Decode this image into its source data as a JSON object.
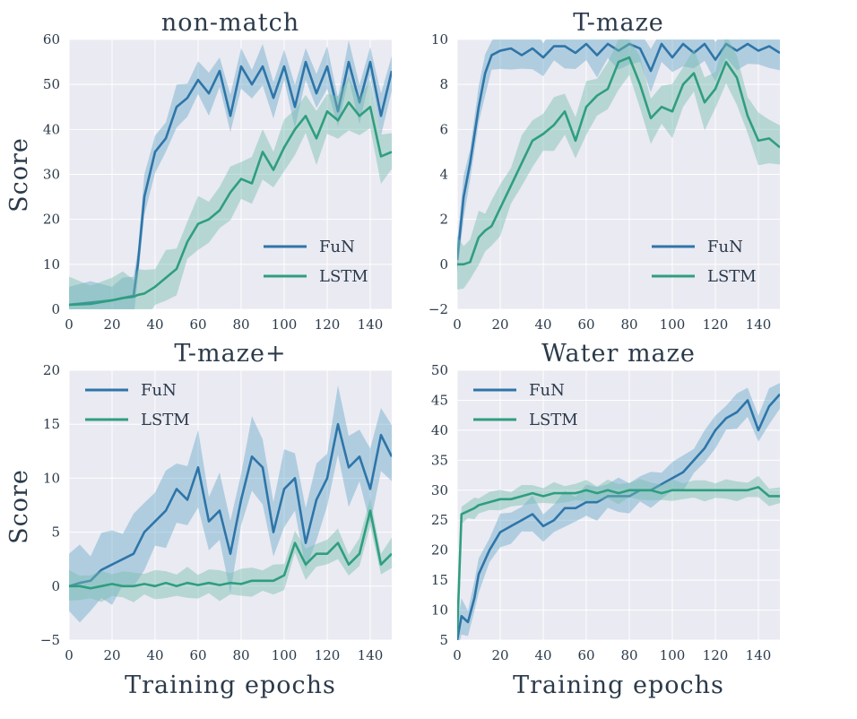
{
  "colors": {
    "background": "#eaeaf2",
    "grid": "#ffffff",
    "FuN": "#2e75a8",
    "LSTM": "#2f9e7e",
    "FuN_band": "#6aaac9",
    "LSTM_band": "#78bfb0"
  },
  "figure": {
    "y_label": "Score",
    "x_label": "Training epochs"
  },
  "chart_data": [
    {
      "type": "line",
      "title": "non-match",
      "xlabel": "",
      "ylabel": "Score",
      "xlim": [
        0,
        150
      ],
      "ylim": [
        0,
        60
      ],
      "xticks": [
        0,
        20,
        40,
        60,
        80,
        100,
        120,
        140
      ],
      "yticks": [
        0,
        10,
        20,
        30,
        40,
        50,
        60
      ],
      "grid": true,
      "legend": "bottom-right",
      "x": [
        0,
        10,
        20,
        25,
        30,
        32,
        35,
        40,
        45,
        50,
        55,
        60,
        65,
        70,
        75,
        80,
        85,
        90,
        95,
        100,
        105,
        110,
        115,
        120,
        125,
        130,
        135,
        140,
        145,
        150
      ],
      "series": [
        {
          "name": "FuN",
          "values": [
            1,
            1.5,
            2,
            2.5,
            3,
            10,
            25,
            35,
            38,
            45,
            47,
            51,
            48,
            53,
            43,
            54,
            50,
            54,
            47,
            54,
            45,
            55,
            48,
            54,
            44,
            55,
            46,
            55,
            43,
            53
          ],
          "band": 4
        },
        {
          "name": "LSTM",
          "values": [
            1,
            1.2,
            2,
            2.5,
            2.8,
            3.2,
            3.5,
            5,
            7,
            9,
            15,
            19,
            20,
            22,
            26,
            29,
            28,
            35,
            31,
            36,
            40,
            43,
            38,
            44,
            42,
            46,
            43,
            45,
            34,
            35
          ],
          "band": 5
        }
      ]
    },
    {
      "type": "line",
      "title": "T-maze",
      "xlabel": "",
      "ylabel": "",
      "xlim": [
        0,
        150
      ],
      "ylim": [
        -2,
        10
      ],
      "xticks": [
        0,
        20,
        40,
        60,
        80,
        100,
        120,
        140
      ],
      "yticks": [
        -2,
        0,
        2,
        4,
        6,
        8,
        10
      ],
      "grid": true,
      "legend": "bottom-right",
      "x": [
        0,
        3,
        6,
        10,
        13,
        16,
        20,
        25,
        30,
        35,
        40,
        45,
        50,
        55,
        60,
        65,
        70,
        75,
        80,
        85,
        90,
        95,
        100,
        105,
        110,
        115,
        120,
        125,
        130,
        135,
        140,
        145,
        150
      ],
      "series": [
        {
          "name": "FuN",
          "values": [
            0.2,
            3,
            4.5,
            7,
            8.5,
            9.3,
            9.5,
            9.6,
            9.3,
            9.6,
            9.2,
            9.7,
            9.7,
            9.4,
            9.8,
            9.3,
            9.8,
            9.5,
            9.8,
            9.6,
            8.6,
            9.8,
            9.2,
            9.8,
            9.4,
            9.8,
            9.1,
            9.8,
            9.5,
            9.8,
            9.5,
            9.7,
            9.4
          ],
          "band": 0.8
        },
        {
          "name": "LSTM",
          "values": [
            0,
            0,
            0.1,
            1.2,
            1.5,
            1.7,
            2.5,
            3.5,
            4.5,
            5.5,
            5.8,
            6.2,
            6.8,
            5.5,
            7.0,
            7.5,
            7.8,
            9.0,
            9.2,
            8.0,
            6.5,
            7.0,
            6.8,
            8.0,
            8.5,
            7.2,
            7.8,
            9.0,
            8.3,
            6.6,
            5.5,
            5.6,
            5.2
          ],
          "band": 1.0
        }
      ]
    },
    {
      "type": "line",
      "title": "T-maze+",
      "xlabel": "Training epochs",
      "ylabel": "Score",
      "xlim": [
        0,
        150
      ],
      "ylim": [
        -5,
        20
      ],
      "xticks": [
        0,
        20,
        40,
        60,
        80,
        100,
        120,
        140
      ],
      "yticks": [
        -5,
        0,
        5,
        10,
        15,
        20
      ],
      "grid": true,
      "legend": "top-left",
      "x": [
        0,
        5,
        10,
        15,
        20,
        25,
        30,
        35,
        40,
        45,
        50,
        55,
        60,
        65,
        70,
        75,
        80,
        85,
        90,
        95,
        100,
        105,
        110,
        115,
        120,
        125,
        130,
        135,
        140,
        145,
        150
      ],
      "series": [
        {
          "name": "FuN",
          "values": [
            0,
            0.3,
            0.5,
            1.5,
            2,
            2.5,
            3,
            5,
            6,
            7,
            9,
            8,
            11,
            6,
            7,
            3,
            8,
            12,
            11,
            5,
            9,
            10,
            4,
            8,
            10,
            15,
            11,
            12,
            9,
            14,
            12
          ],
          "band": 3
        },
        {
          "name": "LSTM",
          "values": [
            0,
            0,
            -0.2,
            0,
            0.2,
            0,
            0,
            0.2,
            0,
            0.3,
            0,
            0.3,
            0.1,
            0.3,
            0.1,
            0.3,
            0.2,
            0.5,
            0.5,
            0.5,
            1,
            4,
            2,
            3,
            3,
            4,
            2,
            3,
            7,
            2,
            3
          ],
          "band": 1.2
        }
      ]
    },
    {
      "type": "line",
      "title": "Water maze",
      "xlabel": "Training epochs",
      "ylabel": "",
      "xlim": [
        0,
        150
      ],
      "ylim": [
        5,
        50
      ],
      "xticks": [
        0,
        20,
        40,
        60,
        80,
        100,
        120,
        140
      ],
      "yticks": [
        5,
        10,
        15,
        20,
        25,
        30,
        35,
        40,
        45,
        50
      ],
      "grid": true,
      "legend": "top-left",
      "x": [
        0,
        2,
        5,
        8,
        10,
        15,
        20,
        25,
        30,
        35,
        40,
        45,
        50,
        55,
        60,
        65,
        70,
        75,
        80,
        85,
        90,
        95,
        100,
        105,
        110,
        115,
        120,
        125,
        130,
        135,
        140,
        145,
        150
      ],
      "series": [
        {
          "name": "FuN",
          "values": [
            5,
            9,
            8,
            12,
            16,
            20,
            23,
            24,
            25,
            26,
            24,
            25,
            27,
            27,
            28,
            28,
            29,
            29,
            29,
            30,
            30,
            31,
            32,
            33,
            35,
            37,
            40,
            42,
            43,
            45,
            40,
            44,
            46
          ],
          "band": 2.5
        },
        {
          "name": "LSTM",
          "values": [
            6,
            26,
            26.5,
            27,
            27.5,
            28,
            28.5,
            28.5,
            29,
            29.5,
            29,
            29.5,
            29.5,
            29.5,
            30,
            29.5,
            30,
            29.5,
            30,
            30,
            30,
            29.5,
            30,
            30,
            30,
            30,
            30,
            30,
            30,
            30,
            30.5,
            29,
            29
          ],
          "band": 1.5
        }
      ]
    }
  ]
}
